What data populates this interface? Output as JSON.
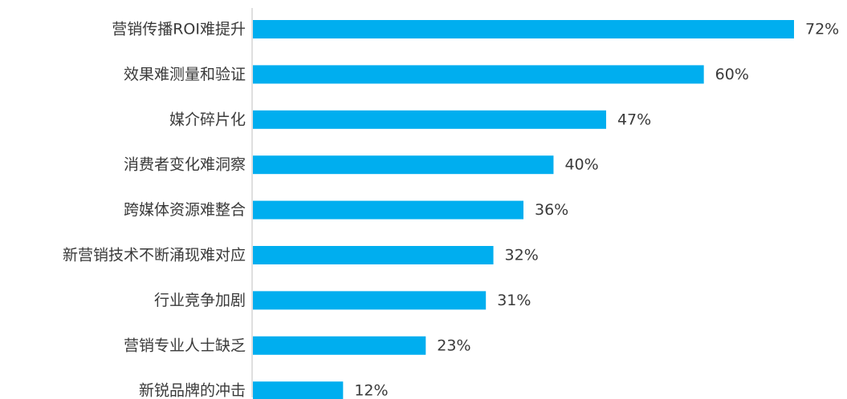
{
  "chart_data": {
    "type": "bar",
    "orientation": "horizontal",
    "title": "",
    "xlabel": "",
    "ylabel": "",
    "categories": [
      "营销传播ROI难提升",
      "效果难测量和验证",
      "媒介碎片化",
      "消费者变化难洞察",
      "跨媒体资源难整合",
      "新营销技术不断涌现难对应",
      "行业竞争加剧",
      "营销专业人士缺乏",
      "新锐品牌的冲击"
    ],
    "values": [
      72,
      60,
      47,
      40,
      36,
      32,
      31,
      23,
      12
    ],
    "value_labels": [
      "72%",
      "60%",
      "47%",
      "40%",
      "36%",
      "32%",
      "31%",
      "23%",
      "12%"
    ],
    "value_unit": "%",
    "xlim": [
      0,
      72
    ],
    "grid": false,
    "legend": "none",
    "bar_color": "#00AEEF",
    "axis_color": "#BFBFBF",
    "text_color": "#3A3A3A"
  }
}
